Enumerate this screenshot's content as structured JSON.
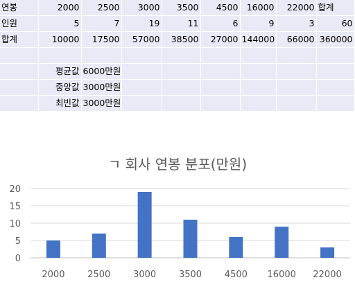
{
  "sheet": {
    "rows": [
      [
        "연봉",
        "2000",
        "2500",
        "3000",
        "3500",
        "4500",
        "16000",
        "22000",
        "합계"
      ],
      [
        "인원",
        "5",
        "7",
        "19",
        "11",
        "6",
        "9",
        "3",
        "60"
      ],
      [
        "합계",
        "10000",
        "17500",
        "57000",
        "38500",
        "27000",
        "144000",
        "66000",
        "360000"
      ]
    ],
    "stats": [
      {
        "label": "평균값",
        "value": "6000만원"
      },
      {
        "label": "중앙값",
        "value": "3000만원"
      },
      {
        "label": "최빈값",
        "value": "3000만원"
      }
    ]
  },
  "chart_data": {
    "type": "bar",
    "title": "ㄱ 회사 연봉 분포(만원)",
    "categories": [
      "2000",
      "2500",
      "3000",
      "3500",
      "4500",
      "16000",
      "22000"
    ],
    "values": [
      5,
      7,
      19,
      11,
      6,
      9,
      3
    ],
    "ylim": [
      0,
      20
    ],
    "yticks": [
      "0",
      "5",
      "10",
      "15",
      "20"
    ],
    "grid": true,
    "bar_color": "#4472c4"
  }
}
